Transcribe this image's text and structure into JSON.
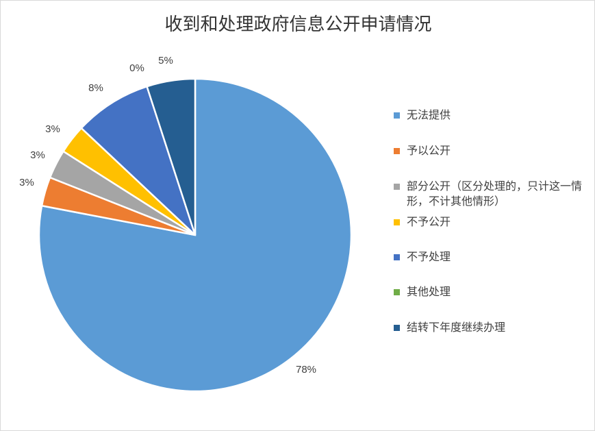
{
  "chart_data": {
    "type": "pie",
    "title": "收到和处理政府信息公开申请情况",
    "legend_position": "right",
    "slices": [
      {
        "name": "无法提供",
        "value": 78,
        "label": "78%",
        "color": "#5b9bd5"
      },
      {
        "name": "予以公开",
        "value": 3,
        "label": "3%",
        "color": "#ed7d31"
      },
      {
        "name": "部分公开（区分处理的，只计这一情形，不计其他情形）",
        "value": 3,
        "label": "3%",
        "color": "#a5a5a5"
      },
      {
        "name": "不予公开",
        "value": 3,
        "label": "3%",
        "color": "#ffc000"
      },
      {
        "name": "不予处理",
        "value": 8,
        "label": "8%",
        "color": "#4472c4"
      },
      {
        "name": "其他处理",
        "value": 0,
        "label": "0%",
        "color": "#70ad47"
      },
      {
        "name": "结转下年度继续办理",
        "value": 5,
        "label": "5%",
        "color": "#255e91"
      }
    ]
  }
}
